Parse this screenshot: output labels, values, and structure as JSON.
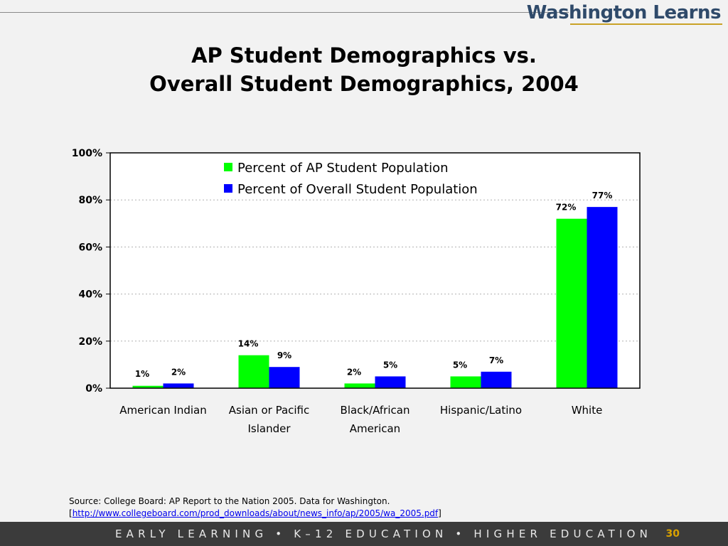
{
  "header": {
    "brand": "Washington Learns"
  },
  "title": {
    "line1": "AP Student Demographics vs.",
    "line2": "Overall Student Demographics, 2004"
  },
  "chart_data": {
    "type": "bar",
    "categories": [
      [
        "American Indian"
      ],
      [
        "Asian or Pacific",
        "Islander"
      ],
      [
        "Black/African",
        "American"
      ],
      [
        "Hispanic/Latino"
      ],
      [
        "White"
      ]
    ],
    "series": [
      {
        "name": "Percent of AP Student Population",
        "color": "#00ff00",
        "values": [
          1,
          14,
          2,
          5,
          72
        ],
        "labels": [
          "1%",
          "14%",
          "2%",
          "5%",
          "72%"
        ]
      },
      {
        "name": "Percent of Overall Student Population",
        "color": "#0000ff",
        "values": [
          2,
          9,
          5,
          7,
          77
        ],
        "labels": [
          "2%",
          "9%",
          "5%",
          "7%",
          "77%"
        ]
      }
    ],
    "ylim": [
      0,
      100
    ],
    "yticks": [
      "0%",
      "20%",
      "40%",
      "60%",
      "80%",
      "100%"
    ],
    "ytick_values": [
      0,
      20,
      40,
      60,
      80,
      100
    ],
    "grid": true,
    "legend_position": "top-center"
  },
  "source": {
    "text": "Source: College Board: AP Report to the Nation 2005. Data for Washington.",
    "bracket_open": "[",
    "link": "http://www.collegeboard.com/prod_downloads/about/news_info/ap/2005/wa_2005.pdf",
    "bracket_close": "]"
  },
  "footer": {
    "text": "EARLY LEARNING  •  K–12 EDUCATION  •  HIGHER EDUCATION",
    "page": "30"
  }
}
